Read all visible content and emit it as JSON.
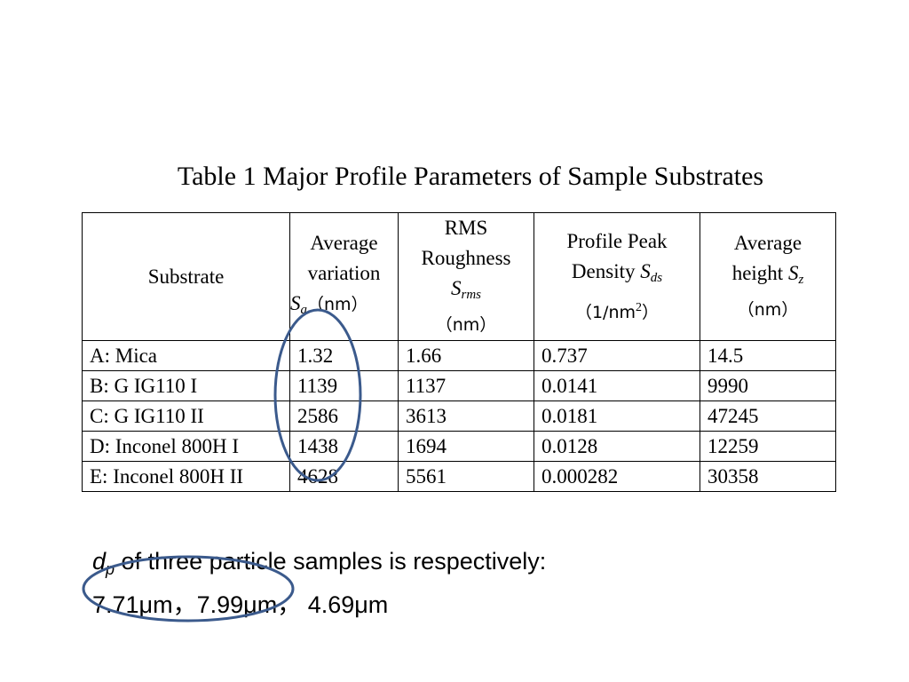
{
  "caption": "Table 1 Major Profile Parameters of Sample Substrates",
  "table": {
    "headers": {
      "substrate": "Substrate",
      "avg_variation": {
        "line1": "Average",
        "line2": "variation",
        "symbol": "S",
        "sub": "a",
        "unit": "（nm）"
      },
      "rms": {
        "line1": "RMS",
        "line2": "Roughness",
        "symbol": "S",
        "sub": "rms",
        "unit": "（nm）"
      },
      "peak_density": {
        "line1": "Profile Peak",
        "line2": "Density",
        "symbol": "S",
        "sub": "ds",
        "unit_open": "（1/nm",
        "unit_sup": "2",
        "unit_close": "）"
      },
      "avg_height": {
        "line1": "Average",
        "line2": "height",
        "symbol": "S",
        "sub": "z",
        "unit": "（nm）"
      }
    },
    "rows": [
      [
        "A: Mica",
        "1.32",
        "1.66",
        "0.737",
        "14.5"
      ],
      [
        "B: G IG110 I",
        "1139",
        "1137",
        "0.0141",
        "9990"
      ],
      [
        "C: G IG110 II",
        "2586",
        "3613",
        "0.0181",
        "47245"
      ],
      [
        "D: Inconel 800H I",
        "1438",
        "1694",
        "0.0128",
        "12259"
      ],
      [
        "E: Inconel 800H II",
        "4628",
        "5561",
        "0.000282",
        "30358"
      ]
    ]
  },
  "note": {
    "symbol": "d",
    "sub": "p",
    "line1": " of three particle samples is respectively:",
    "line2": "7.71μm，7.99μm， 4.69μm"
  },
  "highlight_color": "#3b5a8c"
}
